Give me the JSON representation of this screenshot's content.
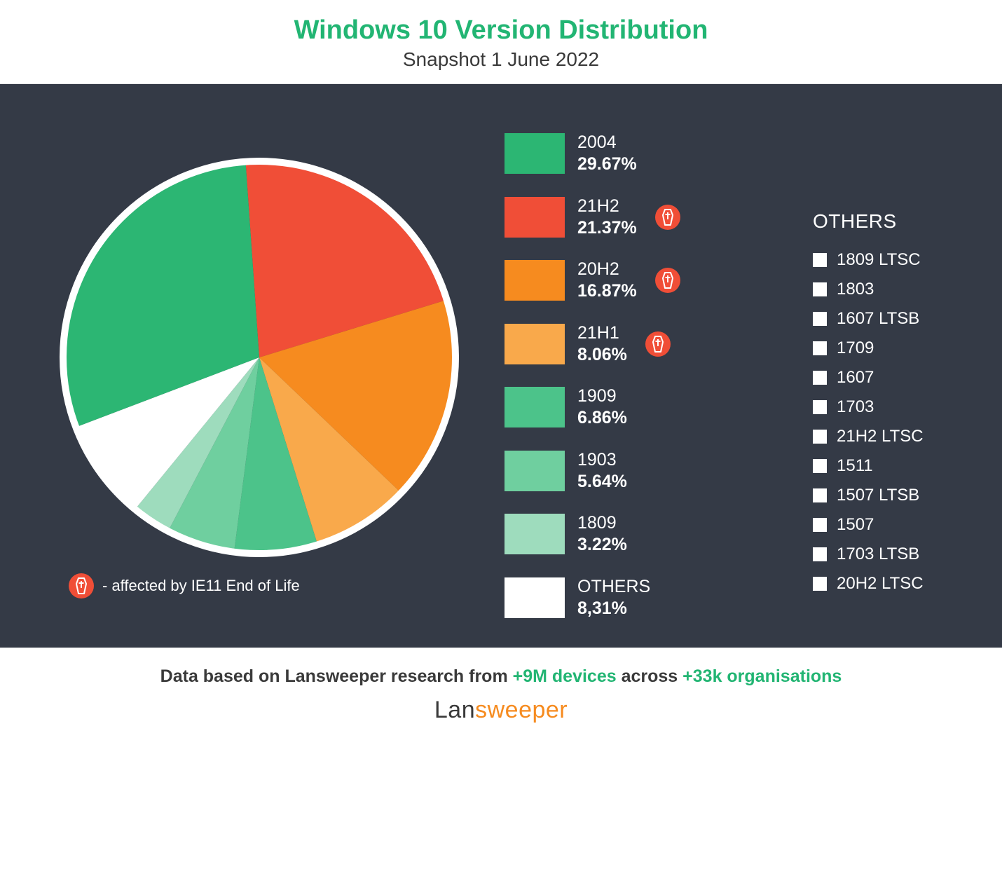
{
  "header": {
    "title": "Windows 10 Version Distribution",
    "title_color": "#22b573",
    "subtitle": "Snapshot 1 June 2022",
    "subtitle_color": "#3a3a3a"
  },
  "chart": {
    "type": "pie",
    "background_color": "#343a46",
    "pie_border_color": "#ffffff",
    "pie_border_width": 10,
    "start_angle_deg": -94,
    "slices": [
      {
        "label": "2004",
        "value": 29.67,
        "value_text": "29.67%",
        "color": "#2cb673",
        "affected": false
      },
      {
        "label": "21H2",
        "value": 21.37,
        "value_text": "21.37%",
        "color": "#f04e37",
        "affected": true
      },
      {
        "label": "20H2",
        "value": 16.87,
        "value_text": "16.87%",
        "color": "#f68b1f",
        "affected": true
      },
      {
        "label": "21H1",
        "value": 8.06,
        "value_text": "8.06%",
        "color": "#f9a94b",
        "affected": true
      },
      {
        "label": "1909",
        "value": 6.86,
        "value_text": "6.86%",
        "color": "#4cc38a",
        "affected": false
      },
      {
        "label": "1903",
        "value": 5.64,
        "value_text": "5.64%",
        "color": "#6fcf9f",
        "affected": false
      },
      {
        "label": "1809",
        "value": 3.22,
        "value_text": "3.22%",
        "color": "#9edcbd",
        "affected": false
      },
      {
        "label": "OTHERS",
        "value": 8.31,
        "value_text": "8,31%",
        "color": "#ffffff",
        "affected": false
      }
    ],
    "pie_order": [
      "21H2",
      "20H2",
      "21H1",
      "1909",
      "1903",
      "1809",
      "OTHERS",
      "2004"
    ],
    "affected_badge": {
      "bg": "#f04e37",
      "stroke": "#ffffff"
    },
    "legend_text_color": "#ffffff",
    "swatch_size": {
      "w": 86,
      "h": 58
    }
  },
  "others": {
    "title": "OTHERS",
    "bullet_color": "#ffffff",
    "text_color": "#ffffff",
    "items": [
      "1809 LTSC",
      "1803",
      "1607 LTSB",
      "1709",
      "1607",
      "1703",
      "21H2 LTSC",
      "1511",
      "1507 LTSB",
      "1507",
      "1703 LTSB",
      "20H2 LTSC"
    ]
  },
  "footnote": {
    "text": "- affected by IE11 End of Life",
    "color": "#ffffff"
  },
  "footer": {
    "credit_prefix": "Data based on Lansweeper research from ",
    "credit_devices": "+9M devices",
    "credit_mid": " across ",
    "credit_orgs": "+33k organisations",
    "credit_color": "#3a3a3a",
    "accent_color": "#22b573",
    "brand_part1": "Lan",
    "brand_part2": "sweeper",
    "brand_color1": "#3a3a3a",
    "brand_color2": "#f68b1f"
  }
}
